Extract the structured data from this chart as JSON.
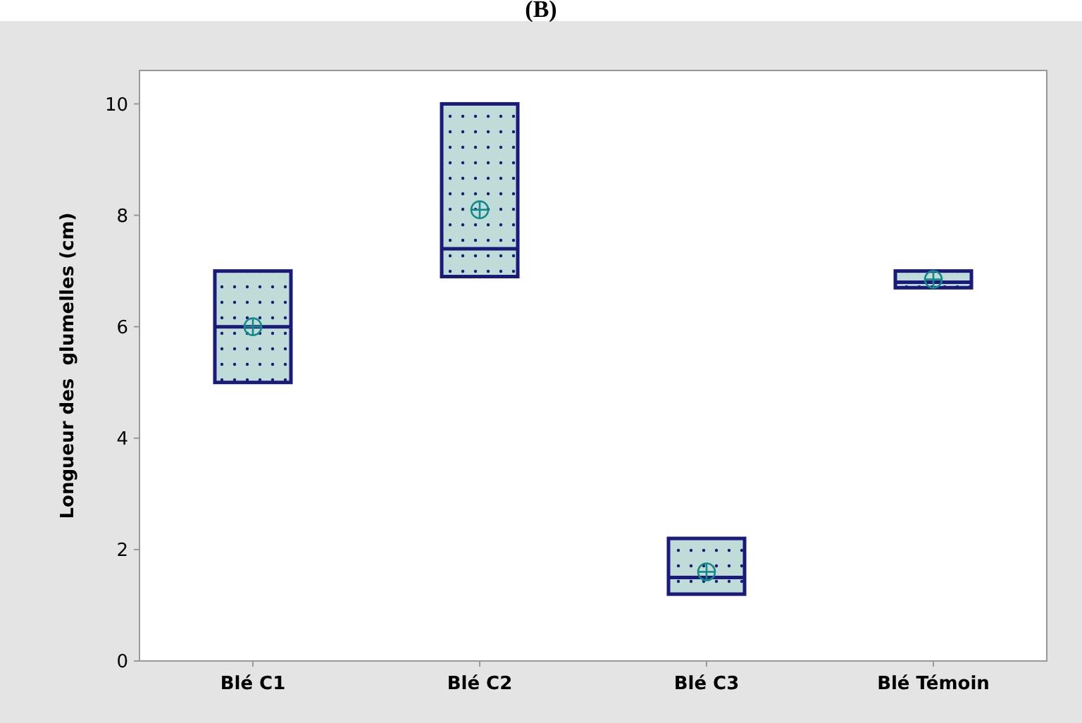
{
  "chart_data": {
    "type": "box",
    "title": "(B)",
    "ylabel": "Longueur des  glumelles (cm)",
    "categories": [
      "Blé C1",
      "Blé C2",
      "Blé C3",
      "Blé Témoin"
    ],
    "boxes": [
      {
        "low": 5.0,
        "q1": 5.0,
        "median": 6.0,
        "q3": 7.0,
        "high": 7.0,
        "mean": 6.0
      },
      {
        "low": 6.9,
        "q1": 6.9,
        "median": 7.4,
        "q3": 10.0,
        "high": 10.0,
        "mean": 8.1
      },
      {
        "low": 1.2,
        "q1": 1.2,
        "median": 1.5,
        "q3": 2.2,
        "high": 2.2,
        "mean": 1.6
      },
      {
        "low": 6.7,
        "q1": 6.7,
        "median": 6.8,
        "q3": 7.0,
        "high": 7.0,
        "mean": 6.85
      }
    ],
    "color": "#1a1a7a",
    "ylim": [
      0,
      10.6
    ],
    "yticks": [
      0,
      2,
      4,
      6,
      8,
      10
    ],
    "grid": false
  }
}
